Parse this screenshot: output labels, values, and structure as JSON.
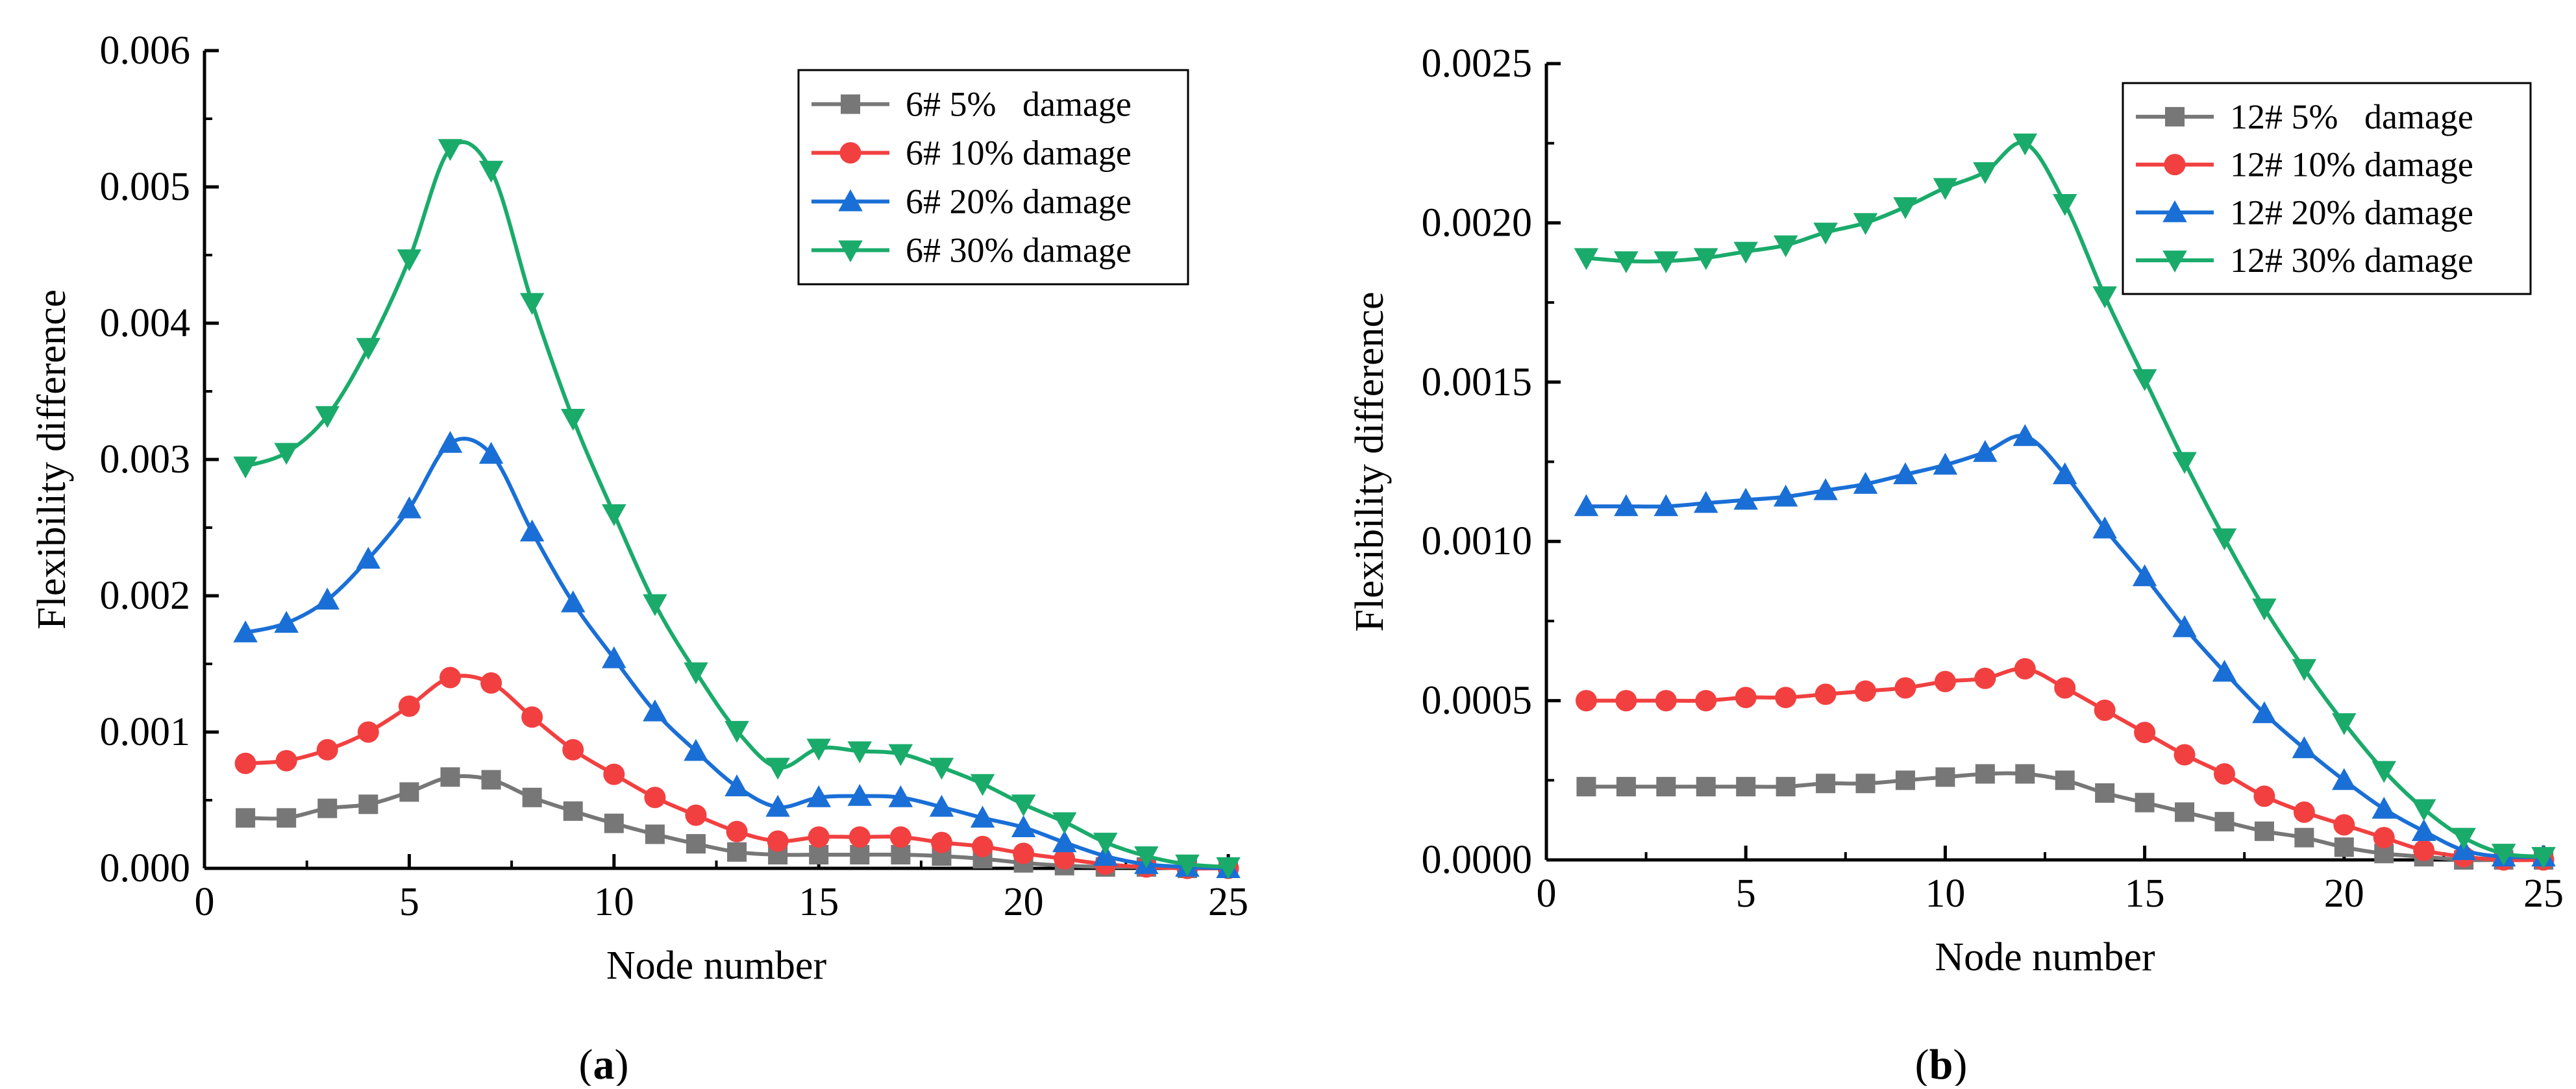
{
  "figure": {
    "captions": [
      "(a)",
      "(b)"
    ],
    "caption_letters": [
      "a",
      "b"
    ]
  },
  "colors": {
    "5": "#777777",
    "10": "#f24040",
    "20": "#1a6fd6",
    "30": "#1aab6b",
    "axis": "#000000"
  },
  "chart_data": [
    {
      "type": "line",
      "caption": "(a)",
      "xlabel": "Node number",
      "ylabel": "Flexibility difference",
      "xlim": [
        0,
        25
      ],
      "ylim": [
        0,
        0.006
      ],
      "xticks": [
        0,
        5,
        10,
        15,
        20,
        25
      ],
      "yticks": [
        0,
        0.001,
        0.002,
        0.003,
        0.004,
        0.005,
        0.006
      ],
      "ytick_labels": [
        "0.000",
        "0.001",
        "0.002",
        "0.003",
        "0.004",
        "0.005",
        "0.006"
      ],
      "legend_position": "top-right",
      "x": [
        1,
        2,
        3,
        4,
        5,
        6,
        7,
        8,
        9,
        10,
        11,
        12,
        13,
        14,
        15,
        16,
        17,
        18,
        19,
        20,
        21,
        22,
        23,
        24,
        25
      ],
      "series": [
        {
          "name": "6# 5%   damage",
          "level": "5",
          "marker": "square",
          "values": [
            0.00037,
            0.00037,
            0.00044,
            0.00047,
            0.00056,
            0.00067,
            0.00065,
            0.00052,
            0.00042,
            0.00033,
            0.00025,
            0.00018,
            0.00012,
            0.0001,
            0.0001,
            0.0001,
            0.0001,
            9e-05,
            7e-05,
            4e-05,
            2e-05,
            1e-05,
            1e-05,
            0,
            0
          ]
        },
        {
          "name": "6# 10% damage",
          "level": "10",
          "marker": "circle",
          "values": [
            0.00077,
            0.00079,
            0.00087,
            0.001,
            0.00119,
            0.0014,
            0.00136,
            0.00111,
            0.00087,
            0.00069,
            0.00052,
            0.00039,
            0.00027,
            0.0002,
            0.00023,
            0.00023,
            0.00023,
            0.00019,
            0.00016,
            0.00011,
            7e-05,
            3e-05,
            1e-05,
            0,
            0
          ]
        },
        {
          "name": "6# 20% damage",
          "level": "20",
          "marker": "triangle-up",
          "values": [
            0.00173,
            0.0018,
            0.00197,
            0.00227,
            0.00264,
            0.00312,
            0.00304,
            0.00247,
            0.00195,
            0.00154,
            0.00115,
            0.00086,
            0.0006,
            0.00045,
            0.00052,
            0.00053,
            0.00052,
            0.00045,
            0.00037,
            0.0003,
            0.00019,
            9e-05,
            3e-05,
            1e-05,
            0
          ]
        },
        {
          "name": "6# 30% damage",
          "level": "30",
          "marker": "triangle-down",
          "values": [
            0.00295,
            0.00305,
            0.00332,
            0.00382,
            0.00447,
            0.00528,
            0.00512,
            0.00415,
            0.0033,
            0.0026,
            0.00194,
            0.00144,
            0.00101,
            0.00074,
            0.00088,
            0.00086,
            0.00084,
            0.00074,
            0.00062,
            0.00047,
            0.00034,
            0.00019,
            9e-05,
            3e-05,
            1e-05
          ]
        }
      ]
    },
    {
      "type": "line",
      "caption": "(b)",
      "xlabel": "Node number",
      "ylabel": "Flexibility difference",
      "xlim": [
        0,
        25
      ],
      "ylim": [
        0,
        0.0025
      ],
      "xticks": [
        0,
        5,
        10,
        15,
        20,
        25
      ],
      "yticks": [
        0,
        0.0005,
        0.001,
        0.0015,
        0.002,
        0.0025
      ],
      "ytick_labels": [
        "0.0000",
        "0.0005",
        "0.0010",
        "0.0015",
        "0.0020",
        "0.0025"
      ],
      "legend_position": "top-right",
      "x": [
        1,
        2,
        3,
        4,
        5,
        6,
        7,
        8,
        9,
        10,
        11,
        12,
        13,
        14,
        15,
        16,
        17,
        18,
        19,
        20,
        21,
        22,
        23,
        24,
        25
      ],
      "series": [
        {
          "name": "12# 5%   damage",
          "level": "5",
          "marker": "square",
          "values": [
            0.00023,
            0.00023,
            0.00023,
            0.00023,
            0.00023,
            0.00023,
            0.00024,
            0.00024,
            0.00025,
            0.00026,
            0.00027,
            0.00027,
            0.00025,
            0.00021,
            0.00018,
            0.00015,
            0.00012,
            9e-05,
            7e-05,
            4e-05,
            2e-05,
            1e-05,
            0,
            0,
            0
          ]
        },
        {
          "name": "12# 10% damage",
          "level": "10",
          "marker": "circle",
          "values": [
            0.0005,
            0.0005,
            0.0005,
            0.0005,
            0.00051,
            0.00051,
            0.00052,
            0.00053,
            0.00054,
            0.00056,
            0.00057,
            0.0006,
            0.00054,
            0.00047,
            0.0004,
            0.00033,
            0.00027,
            0.0002,
            0.00015,
            0.00011,
            7e-05,
            3e-05,
            1e-05,
            0,
            0
          ]
        },
        {
          "name": "12# 20% damage",
          "level": "20",
          "marker": "triangle-up",
          "values": [
            0.00111,
            0.00111,
            0.00111,
            0.00112,
            0.00113,
            0.00114,
            0.00116,
            0.00118,
            0.00121,
            0.00124,
            0.00128,
            0.00133,
            0.00121,
            0.00104,
            0.00089,
            0.00073,
            0.00059,
            0.00046,
            0.00035,
            0.00025,
            0.00016,
            9e-05,
            3e-05,
            1e-05,
            1e-05
          ]
        },
        {
          "name": "12# 30% damage",
          "level": "30",
          "marker": "triangle-down",
          "values": [
            0.00189,
            0.00188,
            0.00188,
            0.00189,
            0.00191,
            0.00193,
            0.00197,
            0.002,
            0.00205,
            0.00211,
            0.00216,
            0.00225,
            0.00206,
            0.00177,
            0.00151,
            0.00125,
            0.00101,
            0.00079,
            0.0006,
            0.00043,
            0.00028,
            0.00016,
            7e-05,
            2e-05,
            1e-05
          ]
        }
      ]
    }
  ]
}
